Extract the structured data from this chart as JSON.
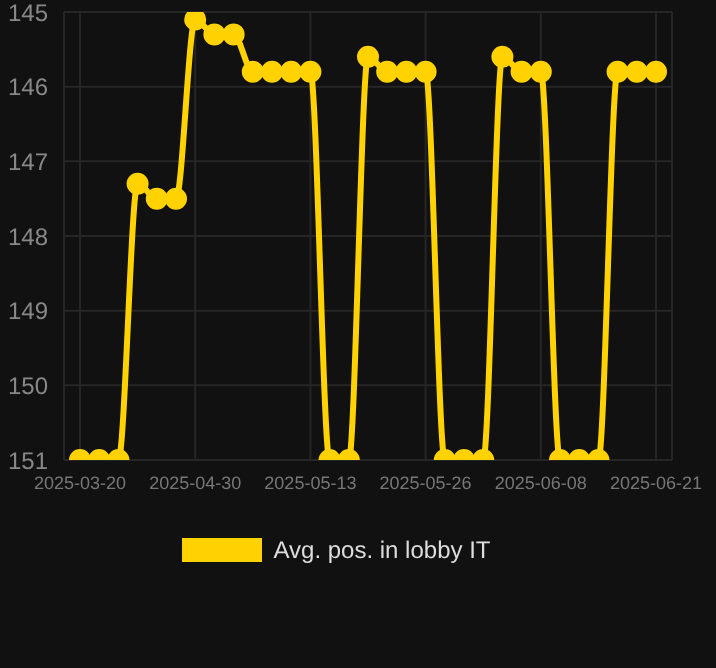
{
  "chart_data": {
    "type": "line",
    "categories": [
      "2025-03-20",
      null,
      null,
      null,
      null,
      null,
      "2025-04-30",
      null,
      null,
      null,
      null,
      null,
      "2025-05-13",
      null,
      null,
      null,
      null,
      null,
      "2025-05-26",
      null,
      null,
      null,
      null,
      null,
      "2025-06-08",
      null,
      null,
      null,
      null,
      null,
      "2025-06-21"
    ],
    "series": [
      {
        "name": "Avg. pos. in lobby IT",
        "color": "#ffd200",
        "values": [
          151,
          151,
          151,
          147.3,
          147.5,
          147.5,
          145.1,
          145.3,
          145.3,
          145.8,
          145.8,
          145.8,
          145.8,
          151,
          151,
          145.6,
          145.8,
          145.8,
          145.8,
          151,
          151,
          151,
          145.6,
          145.8,
          145.8,
          151,
          151,
          151,
          145.8,
          145.8,
          145.8
        ]
      }
    ],
    "ylim": [
      151,
      145
    ],
    "yticks": [
      145,
      146,
      147,
      148,
      149,
      150,
      151
    ],
    "grid": true,
    "legend": "bottom",
    "marker": "circle",
    "line_style": "solid"
  }
}
